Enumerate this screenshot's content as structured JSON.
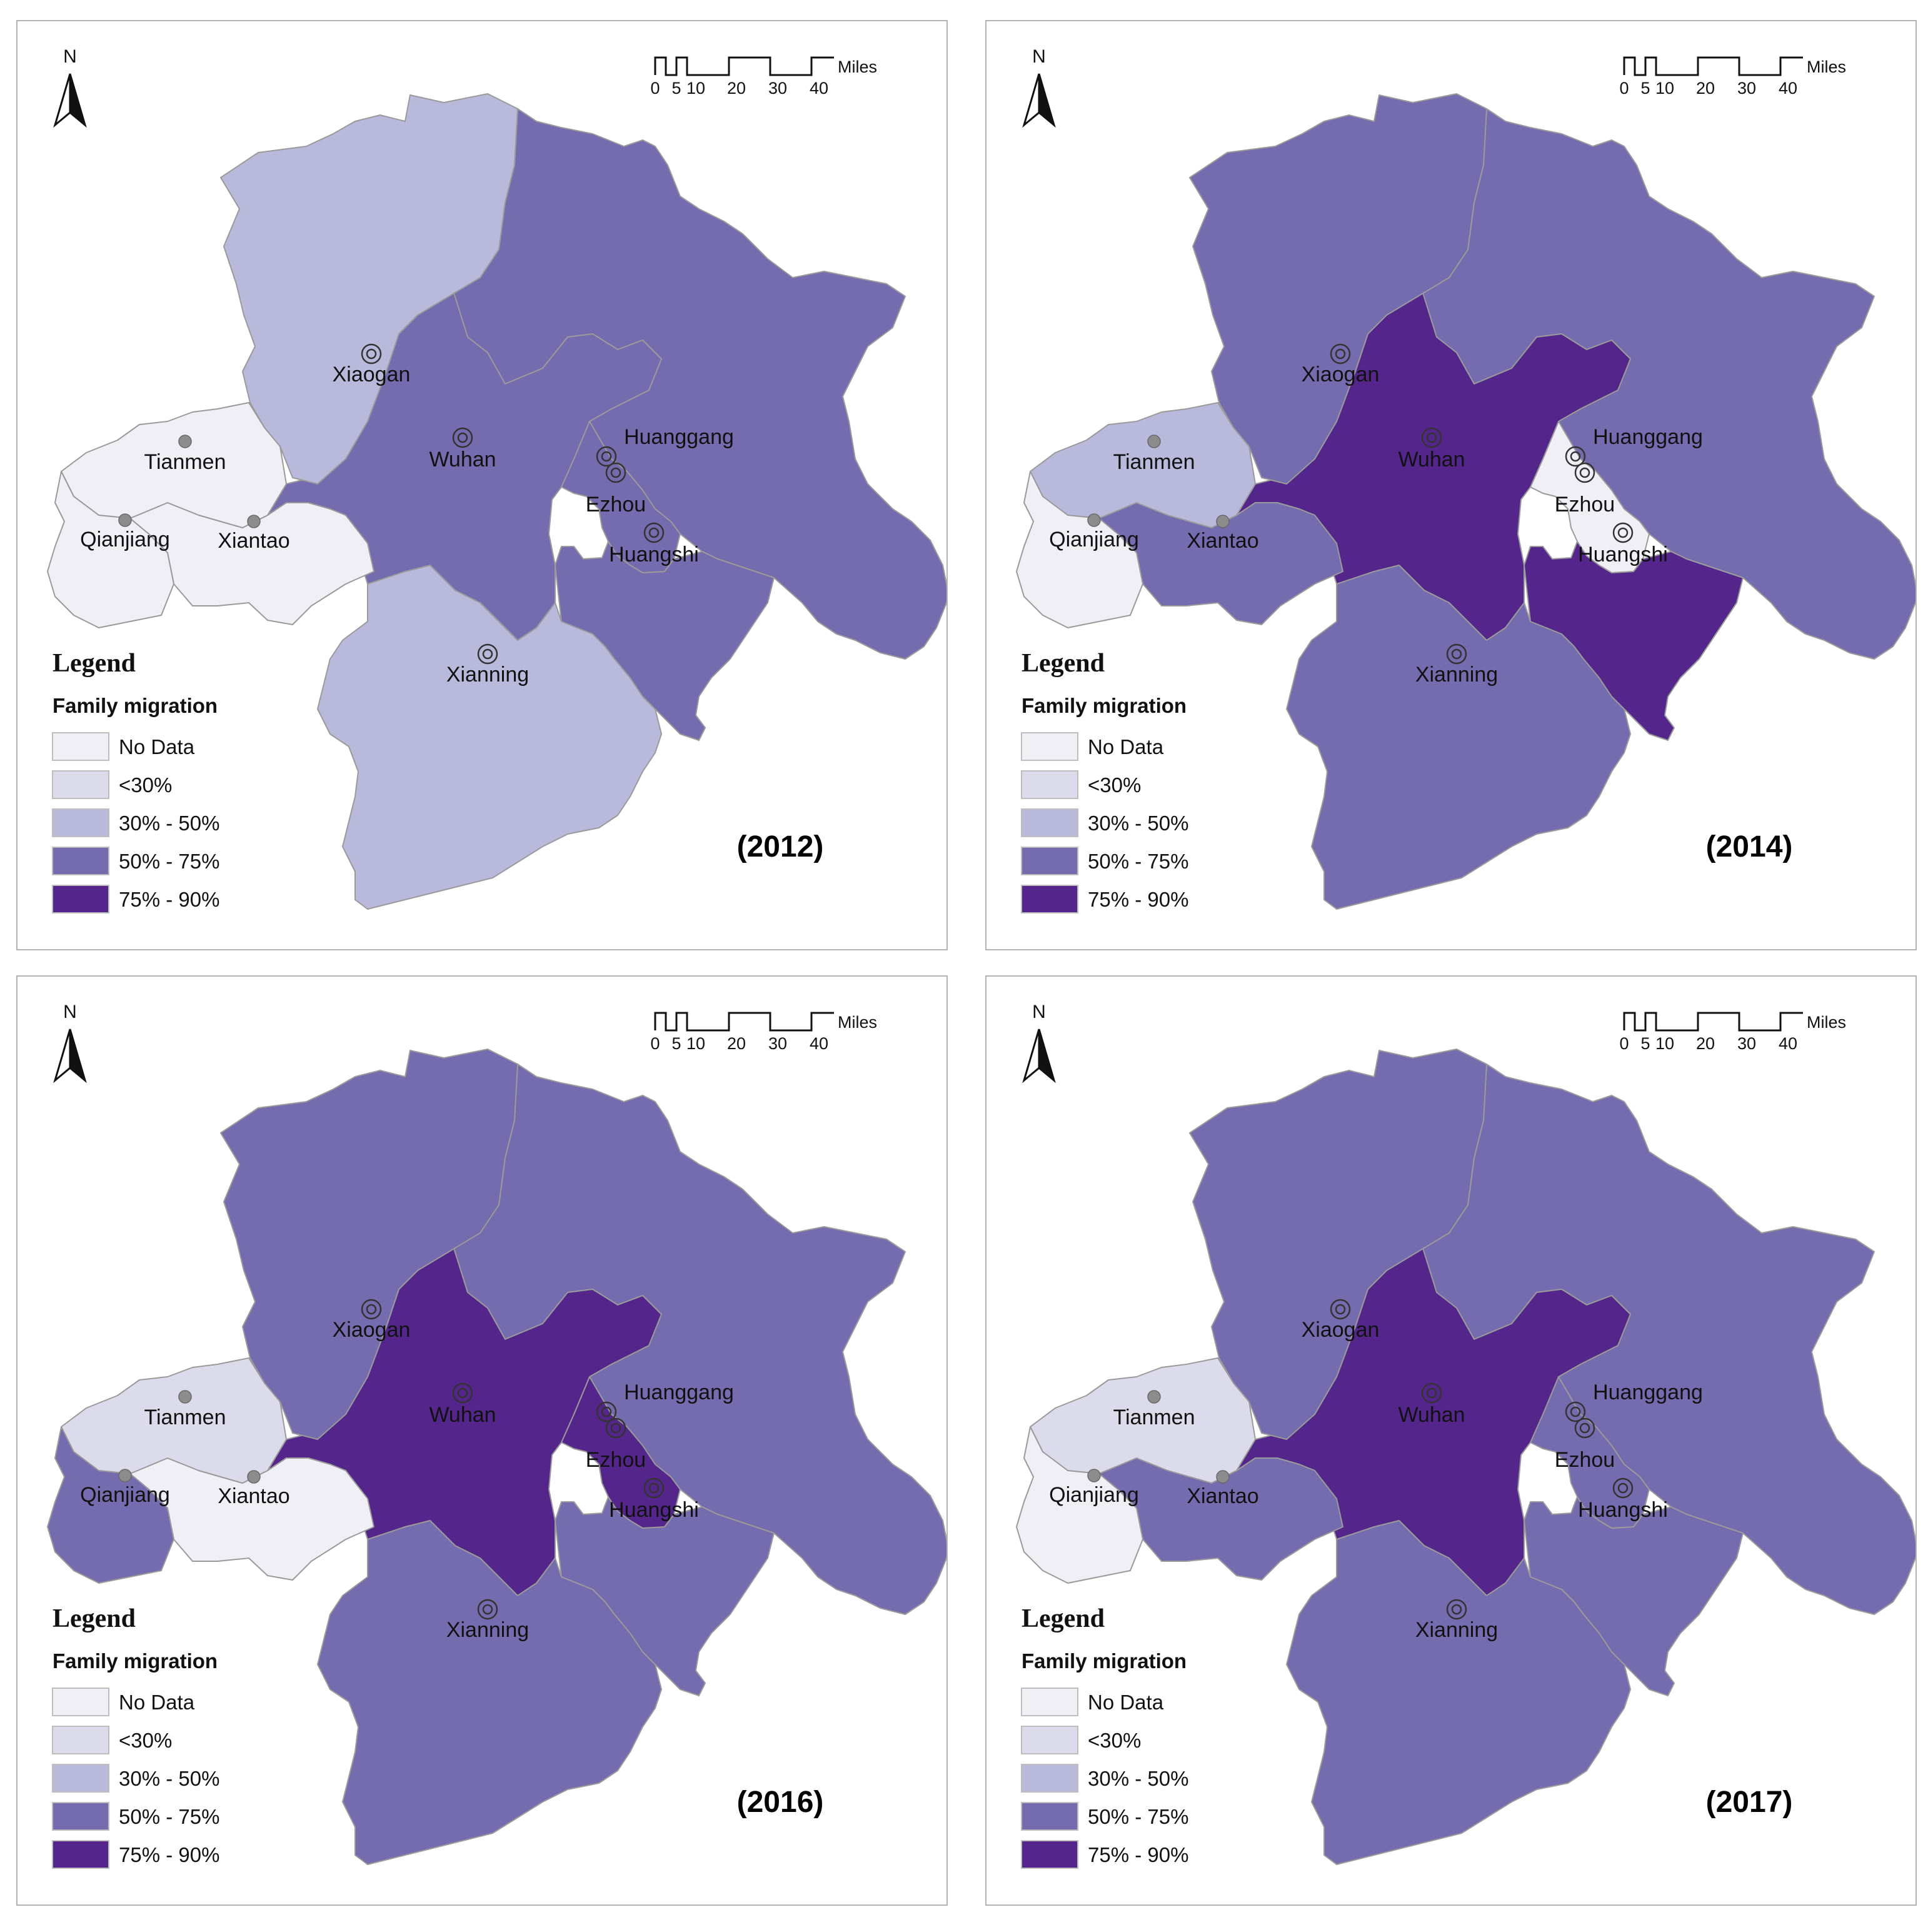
{
  "legend": {
    "title": "Legend",
    "subtitle": "Family migration",
    "classes": [
      {
        "key": "nodata",
        "label": "No Data",
        "color": "#f0eff6"
      },
      {
        "key": "lt30",
        "label": "<30%",
        "color": "#dcdbeb"
      },
      {
        "key": "30-50",
        "label": "30% - 50%",
        "color": "#b9b9dc"
      },
      {
        "key": "50-75",
        "label": "50% - 75%",
        "color": "#746caf"
      },
      {
        "key": "75-90",
        "label": "75% - 90%",
        "color": "#54268c"
      }
    ]
  },
  "north_label": "N",
  "scale_bar": {
    "unit": "Miles",
    "ticks": [
      "0",
      "5",
      "10",
      "20",
      "30",
      "40"
    ]
  },
  "cities": [
    {
      "key": "xiaogan",
      "name": "Xiaogan",
      "marker": "target"
    },
    {
      "key": "tianmen",
      "name": "Tianmen",
      "marker": "dot"
    },
    {
      "key": "wuhan",
      "name": "Wuhan",
      "marker": "target"
    },
    {
      "key": "huanggang",
      "name": "Huanggang",
      "marker": "target"
    },
    {
      "key": "ezhou",
      "name": "Ezhou",
      "marker": "target"
    },
    {
      "key": "qianjiang",
      "name": "Qianjiang",
      "marker": "dot"
    },
    {
      "key": "xiantao",
      "name": "Xiantao",
      "marker": "dot"
    },
    {
      "key": "huangshi",
      "name": "Huangshi",
      "marker": "target"
    },
    {
      "key": "xianning",
      "name": "Xianning",
      "marker": "target"
    }
  ],
  "panels": [
    {
      "year": "(2012)",
      "values": {
        "xiaogan": "30-50",
        "tianmen": "nodata",
        "qianjiang": "nodata",
        "xiantao": "nodata",
        "wuhan": "50-75",
        "huanggang": "50-75",
        "ezhou": "50-75",
        "huangshi": "50-75",
        "xianning": "30-50"
      }
    },
    {
      "year": "(2014)",
      "values": {
        "xiaogan": "50-75",
        "tianmen": "30-50",
        "qianjiang": "nodata",
        "xiantao": "50-75",
        "wuhan": "75-90",
        "huanggang": "50-75",
        "ezhou": "nodata",
        "huangshi": "75-90",
        "xianning": "50-75"
      }
    },
    {
      "year": "(2016)",
      "values": {
        "xiaogan": "50-75",
        "tianmen": "lt30",
        "qianjiang": "50-75",
        "xiantao": "nodata",
        "wuhan": "75-90",
        "huanggang": "50-75",
        "ezhou": "75-90",
        "huangshi": "50-75",
        "xianning": "50-75"
      }
    },
    {
      "year": "(2017)",
      "values": {
        "xiaogan": "50-75",
        "tianmen": "lt30",
        "qianjiang": "nodata",
        "xiantao": "50-75",
        "wuhan": "75-90",
        "huanggang": "50-75",
        "ezhou": "50-75",
        "huangshi": "50-75",
        "xianning": "50-75"
      }
    }
  ]
}
